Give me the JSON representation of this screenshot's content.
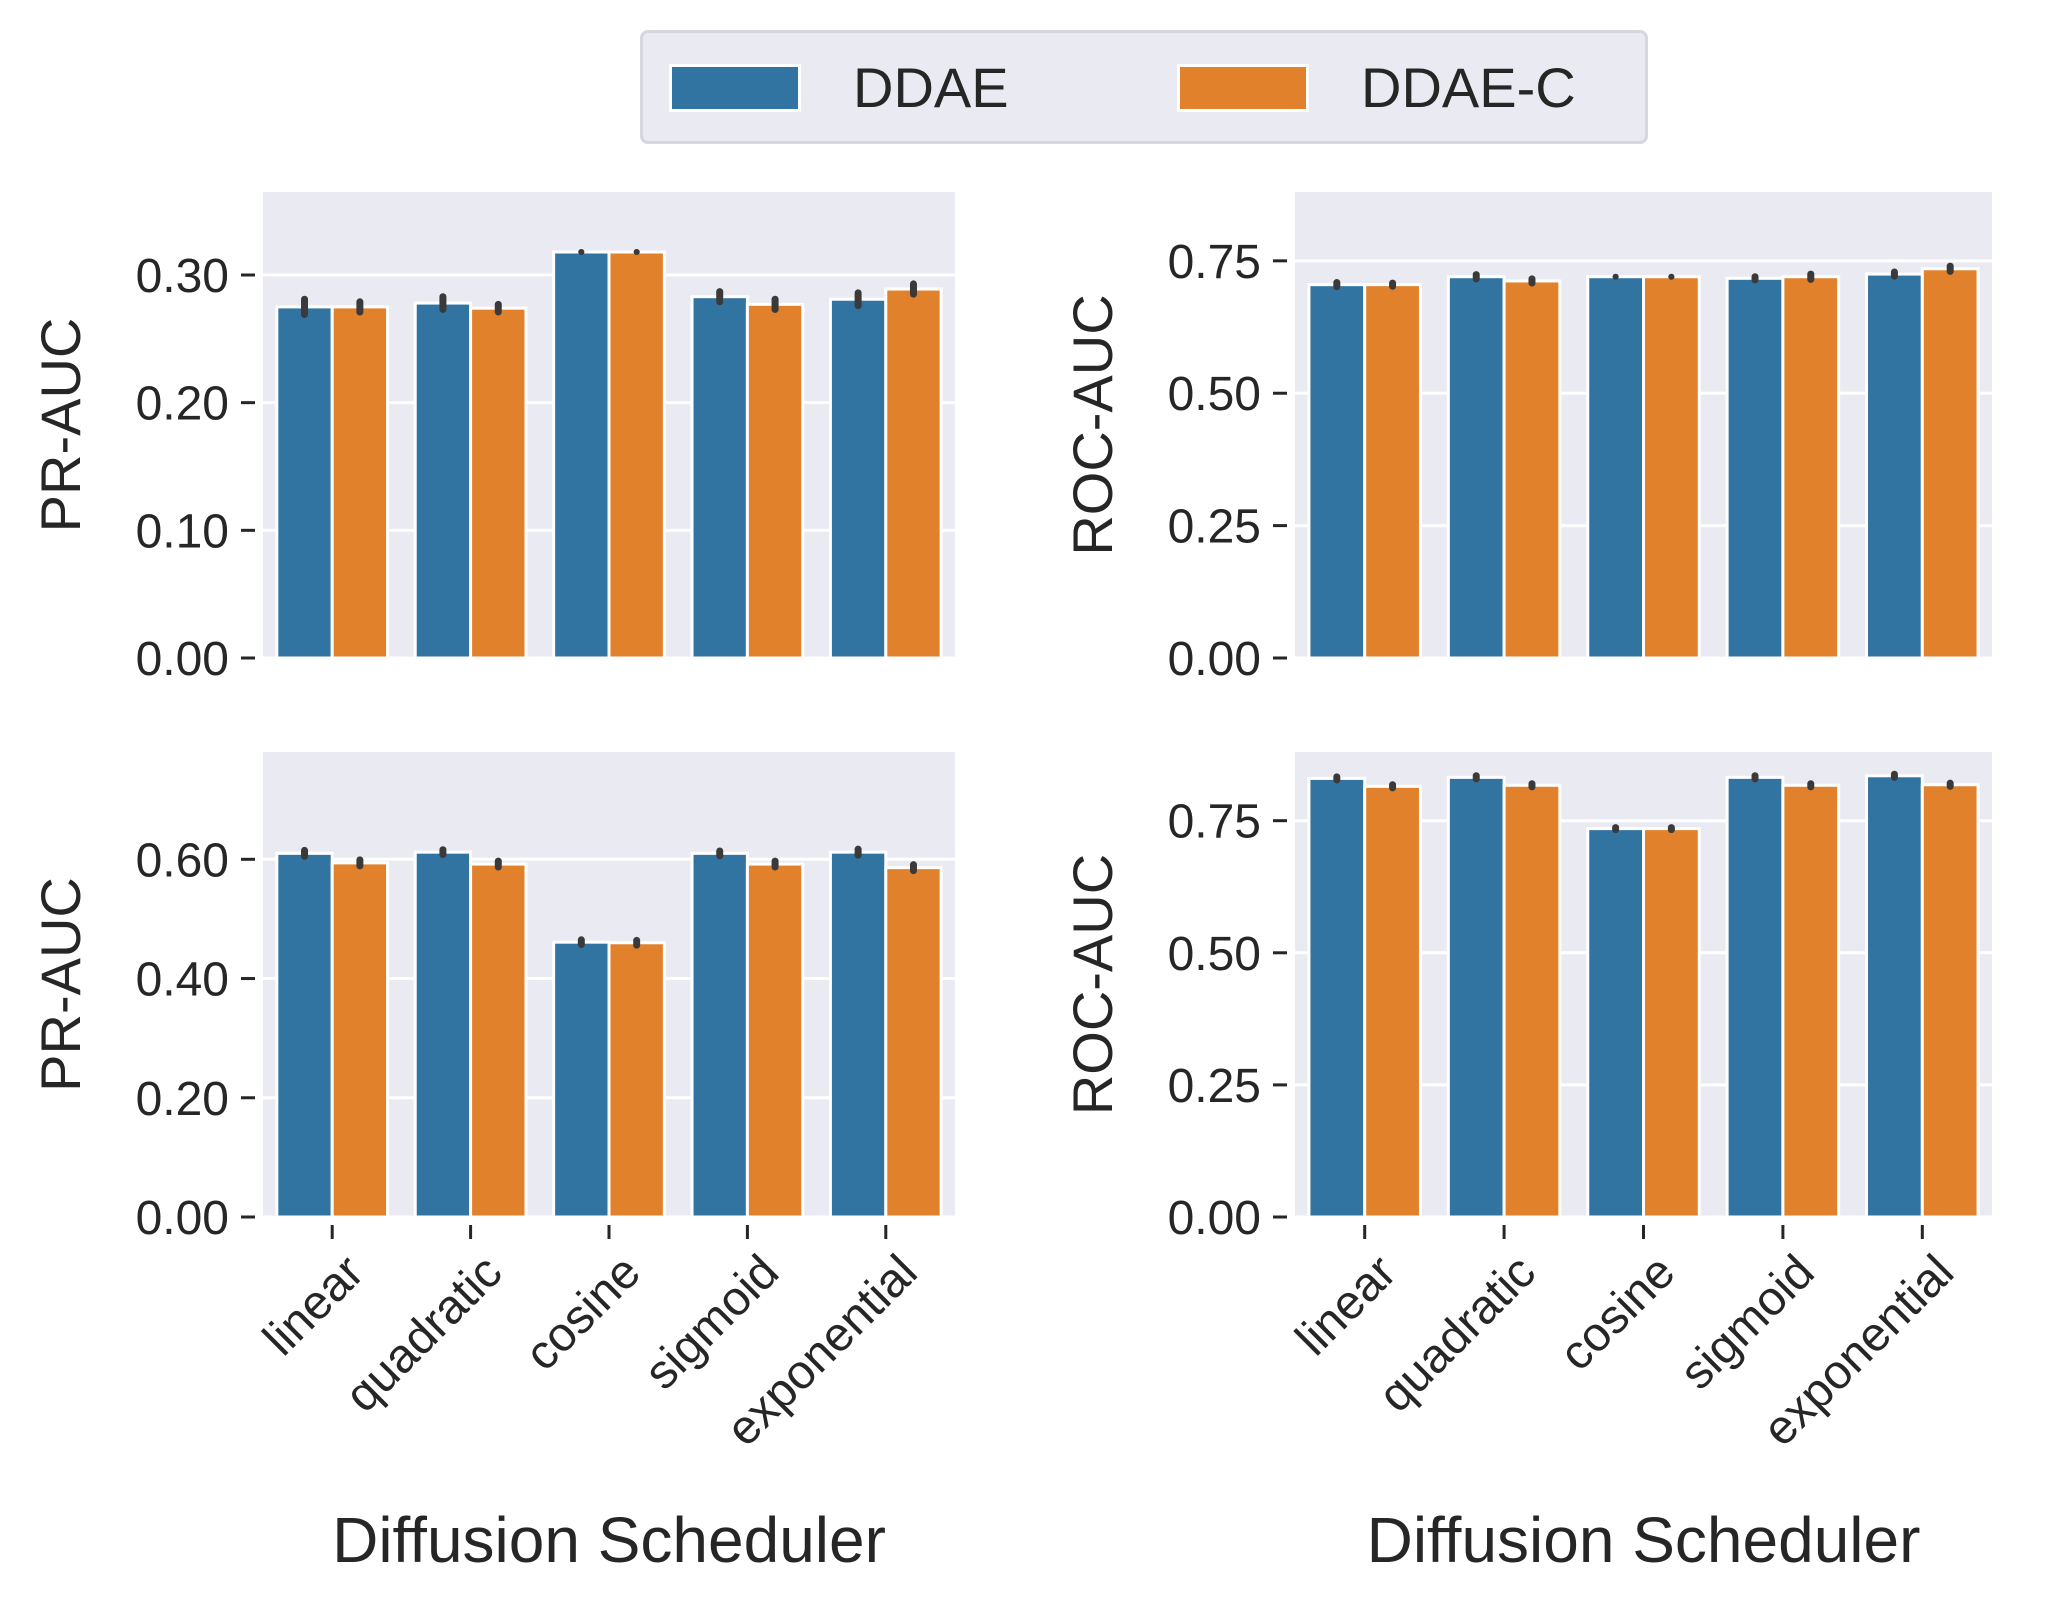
{
  "colors": {
    "ddae": "#3274a1",
    "ddae_c": "#e1812c",
    "plot_bg": "#eaeaf2",
    "grid": "#ffffff",
    "errbar": "#3a3a3a"
  },
  "legend": [
    {
      "label": "DDAE",
      "color": "#3274a1"
    },
    {
      "label": "DDAE-C",
      "color": "#e1812c"
    }
  ],
  "chart_data": [
    {
      "type": "bar",
      "position": "top-left",
      "categories": [
        "linear",
        "quadratic",
        "cosine",
        "sigmoid",
        "exponential"
      ],
      "ylabel": "PR-AUC",
      "xlabel": "",
      "ylim": [
        0,
        0.365
      ],
      "yticks": [
        0.0,
        0.1,
        0.2,
        0.3
      ],
      "yticklabels": [
        "0.00",
        "0.10",
        "0.20",
        "0.30"
      ],
      "show_xticklabels": false,
      "series": [
        {
          "name": "DDAE",
          "values": [
            0.275,
            0.278,
            0.318,
            0.283,
            0.281
          ],
          "err": [
            0.006,
            0.005,
            0.0,
            0.004,
            0.005
          ]
        },
        {
          "name": "DDAE-C",
          "values": [
            0.275,
            0.274,
            0.318,
            0.277,
            0.289
          ],
          "err": [
            0.004,
            0.003,
            0.0,
            0.004,
            0.004
          ]
        }
      ]
    },
    {
      "type": "bar",
      "position": "top-right",
      "categories": [
        "linear",
        "quadratic",
        "cosine",
        "sigmoid",
        "exponential"
      ],
      "ylabel": "ROC-AUC",
      "xlabel": "",
      "ylim": [
        0,
        0.88
      ],
      "yticks": [
        0.0,
        0.25,
        0.5,
        0.75
      ],
      "yticklabels": [
        "0.00",
        "0.25",
        "0.50",
        "0.75"
      ],
      "show_xticklabels": false,
      "series": [
        {
          "name": "DDAE",
          "values": [
            0.705,
            0.72,
            0.72,
            0.717,
            0.725
          ],
          "err": [
            0.004,
            0.004,
            0.0,
            0.003,
            0.004
          ]
        },
        {
          "name": "DDAE-C",
          "values": [
            0.705,
            0.712,
            0.72,
            0.72,
            0.735
          ],
          "err": [
            0.003,
            0.004,
            0.0,
            0.005,
            0.005
          ]
        }
      ]
    },
    {
      "type": "bar",
      "position": "bottom-left",
      "categories": [
        "linear",
        "quadratic",
        "cosine",
        "sigmoid",
        "exponential"
      ],
      "ylabel": "PR-AUC",
      "xlabel": "Diffusion Scheduler",
      "ylim": [
        0,
        0.78
      ],
      "yticks": [
        0.0,
        0.2,
        0.4,
        0.6
      ],
      "yticklabels": [
        "0.00",
        "0.20",
        "0.40",
        "0.60"
      ],
      "show_xticklabels": true,
      "series": [
        {
          "name": "DDAE",
          "values": [
            0.61,
            0.612,
            0.461,
            0.61,
            0.612
          ],
          "err": [
            0.005,
            0.004,
            0.004,
            0.004,
            0.005
          ]
        },
        {
          "name": "DDAE-C",
          "values": [
            0.594,
            0.592,
            0.46,
            0.592,
            0.586
          ],
          "err": [
            0.005,
            0.005,
            0.004,
            0.005,
            0.005
          ]
        }
      ]
    },
    {
      "type": "bar",
      "position": "bottom-right",
      "categories": [
        "linear",
        "quadratic",
        "cosine",
        "sigmoid",
        "exponential"
      ],
      "ylabel": "ROC-AUC",
      "xlabel": "Diffusion Scheduler",
      "ylim": [
        0,
        0.88
      ],
      "yticks": [
        0.0,
        0.25,
        0.5,
        0.75
      ],
      "yticklabels": [
        "0.00",
        "0.25",
        "0.50",
        "0.75"
      ],
      "show_xticklabels": true,
      "series": [
        {
          "name": "DDAE",
          "values": [
            0.83,
            0.832,
            0.735,
            0.832,
            0.835
          ],
          "err": [
            0.003,
            0.003,
            0.002,
            0.003,
            0.003
          ]
        },
        {
          "name": "DDAE-C",
          "values": [
            0.815,
            0.817,
            0.735,
            0.817,
            0.818
          ],
          "err": [
            0.003,
            0.003,
            0.002,
            0.003,
            0.003
          ]
        }
      ]
    }
  ]
}
